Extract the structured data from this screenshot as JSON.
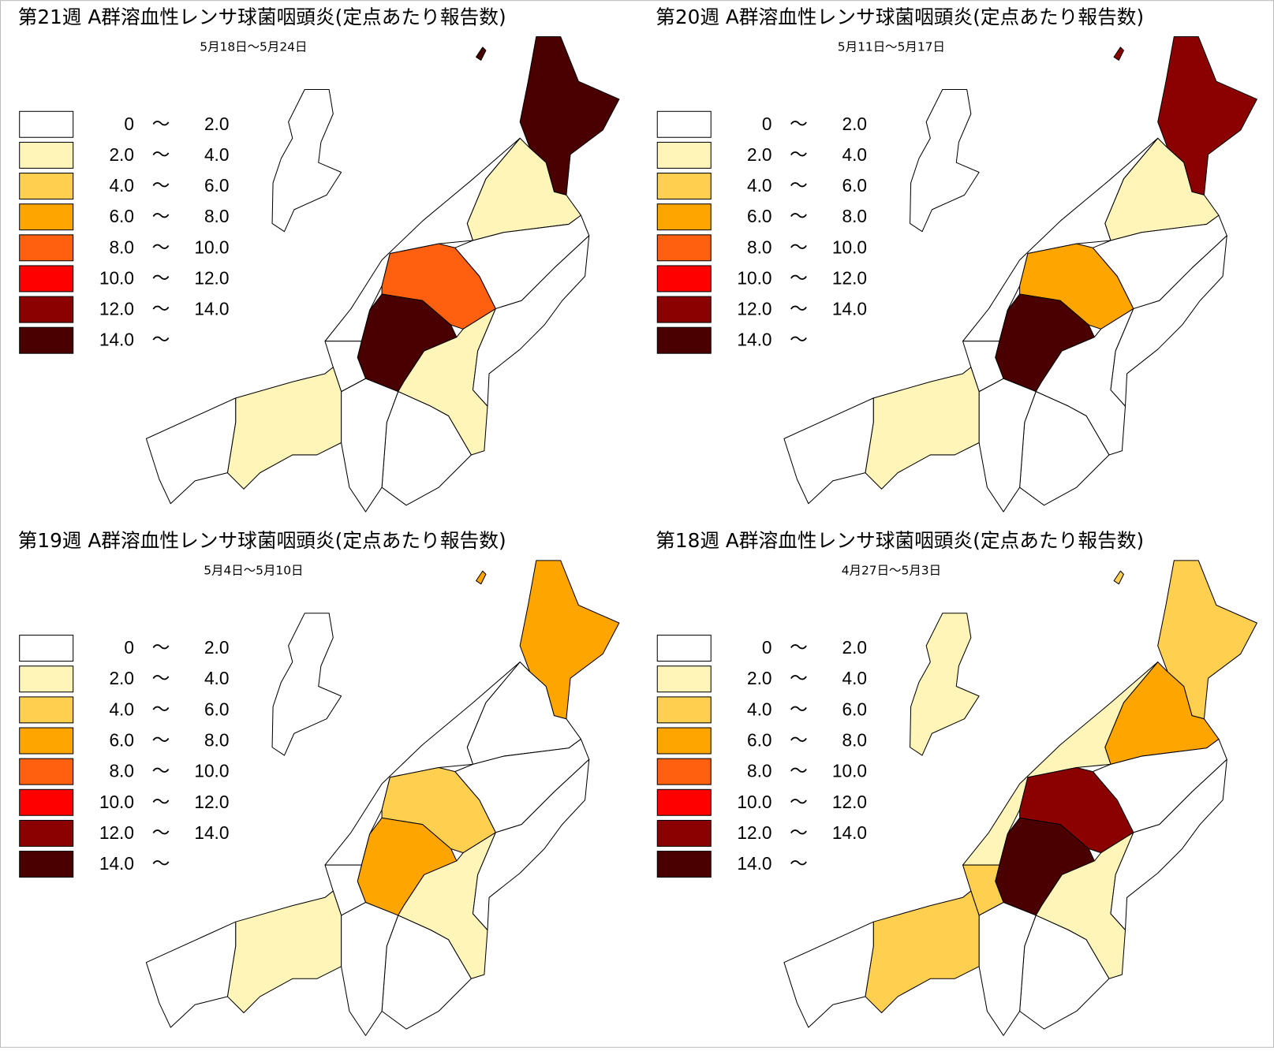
{
  "legend": {
    "separator": "〜",
    "items": [
      {
        "from": "0",
        "to": "2.0",
        "color": "#ffffff"
      },
      {
        "from": "2.0",
        "to": "4.0",
        "color": "#fff5b8"
      },
      {
        "from": "4.0",
        "to": "6.0",
        "color": "#ffd050"
      },
      {
        "from": "6.0",
        "to": "8.0",
        "color": "#ffa500"
      },
      {
        "from": "8.0",
        "to": "10.0",
        "color": "#ff6010"
      },
      {
        "from": "10.0",
        "to": "12.0",
        "color": "#ff0000"
      },
      {
        "from": "12.0",
        "to": "14.0",
        "color": "#8b0000"
      },
      {
        "from": "14.0",
        "color": "#4a0000"
      }
    ]
  },
  "panels": [
    {
      "title": "第21週 A群溶血性レンサ球菌咽頭炎(定点あたり報告数)",
      "date_range": "5月18日～5月24日",
      "region_colors": [
        "#4a0000",
        "#ffffff",
        "#4a0000",
        "#fff5b8",
        "#ffffff",
        "#ffffff",
        "#ff6010",
        "#4a0000",
        "#fff5b8",
        "#ffffff",
        "#ffffff",
        "#ffffff",
        "#ffffff",
        "#fff5b8",
        "#ffffff"
      ]
    },
    {
      "title": "第20週 A群溶血性レンサ球菌咽頭炎(定点あたり報告数)",
      "date_range": "5月11日～5月17日",
      "region_colors": [
        "#8b0000",
        "#ffffff",
        "#8b0000",
        "#fff5b8",
        "#ffffff",
        "#ffffff",
        "#ffa500",
        "#4a0000",
        "#ffffff",
        "#ffffff",
        "#ffffff",
        "#ffffff",
        "#ffffff",
        "#fff5b8",
        "#ffffff"
      ]
    },
    {
      "title": "第19週 A群溶血性レンサ球菌咽頭炎(定点あたり報告数)",
      "date_range": "5月4日～5月10日",
      "region_colors": [
        "#ffa500",
        "#ffffff",
        "#ffa500",
        "#ffffff",
        "#ffffff",
        "#ffffff",
        "#ffd050",
        "#ffa500",
        "#fff5b8",
        "#ffffff",
        "#ffffff",
        "#ffffff",
        "#ffffff",
        "#fff5b8",
        "#ffffff"
      ]
    },
    {
      "title": "第18週 A群溶血性レンサ球菌咽頭炎(定点あたり報告数)",
      "date_range": "4月27日～5月3日",
      "region_colors": [
        "#ffd050",
        "#fff5b8",
        "#ffd050",
        "#ffa500",
        "#fff5b8",
        "#ffffff",
        "#8b0000",
        "#4a0000",
        "#fff5b8",
        "#ffffff",
        "#ffffff",
        "#ffffff",
        "#ffd050",
        "#ffd050",
        "#ffffff"
      ]
    }
  ]
}
